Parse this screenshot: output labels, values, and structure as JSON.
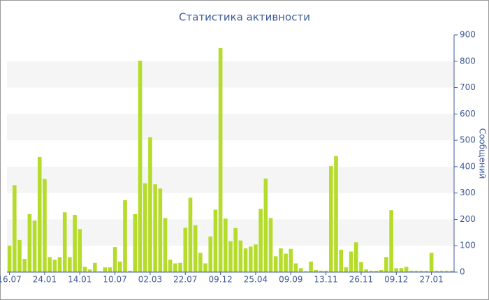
{
  "chart_data": {
    "type": "bar",
    "title": "Статистика активности",
    "y_label": "Сообщений",
    "categories": [
      "16.07",
      null,
      null,
      null,
      null,
      null,
      null,
      "24.01",
      null,
      null,
      null,
      null,
      null,
      null,
      "14.01",
      null,
      null,
      null,
      null,
      null,
      null,
      "10.07",
      null,
      null,
      null,
      null,
      null,
      null,
      "02.03",
      null,
      null,
      null,
      null,
      null,
      null,
      "22.07",
      null,
      null,
      null,
      null,
      null,
      null,
      "09.12",
      null,
      null,
      null,
      null,
      null,
      null,
      "25.04",
      null,
      null,
      null,
      null,
      null,
      null,
      "09.09",
      null,
      null,
      null,
      null,
      null,
      null,
      "13.11",
      null,
      null,
      null,
      null,
      null,
      null,
      "26.11",
      null,
      null,
      null,
      null,
      null,
      null,
      "09.12",
      null,
      null,
      null,
      null,
      null,
      null,
      "27.01",
      null,
      null,
      null,
      null
    ],
    "values": [
      100,
      330,
      122,
      50,
      220,
      195,
      437,
      353,
      57,
      47,
      57,
      227,
      57,
      217,
      163,
      20,
      10,
      35,
      3,
      18,
      18,
      95,
      40,
      273,
      5,
      220,
      802,
      337,
      512,
      333,
      317,
      205,
      47,
      33,
      35,
      168,
      282,
      178,
      73,
      33,
      135,
      237,
      850,
      203,
      117,
      167,
      120,
      90,
      97,
      105,
      240,
      355,
      205,
      60,
      90,
      70,
      88,
      33,
      15,
      3,
      40,
      8,
      5,
      5,
      402,
      440,
      85,
      18,
      78,
      113,
      38,
      10,
      5,
      5,
      8,
      57,
      235,
      15,
      15,
      20,
      5,
      5,
      5,
      5,
      73,
      5,
      5,
      5,
      5
    ],
    "color": "#b5dc2a",
    "ylim": [
      0,
      900
    ],
    "yticks": [
      0,
      100,
      200,
      300,
      400,
      500,
      600,
      700,
      800,
      900
    ],
    "grid": true
  }
}
